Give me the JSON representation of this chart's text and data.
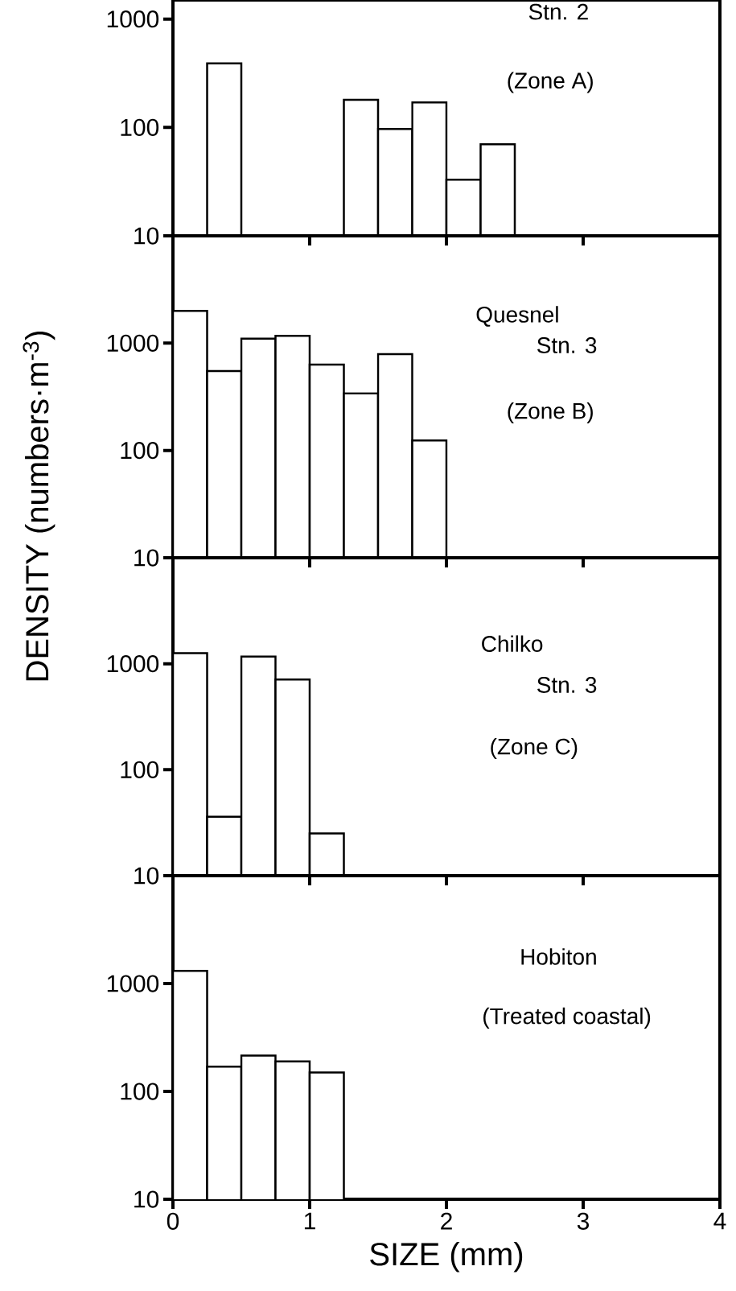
{
  "chart_data": [
    {
      "type": "histogram",
      "bins": [
        0,
        0.25,
        0.5,
        0.75,
        1,
        1.25,
        1.5,
        1.75,
        2,
        2.25,
        2.5
      ],
      "values": [
        null,
        390,
        null,
        null,
        null,
        180,
        97,
        170,
        33,
        70
      ],
      "color": "#ffffff",
      "log": true,
      "xlim": [
        0,
        4
      ],
      "xticks": [
        0,
        1,
        2,
        3,
        4
      ],
      "ylim": [
        10,
        1500
      ],
      "yticks": [
        10,
        100,
        1000
      ],
      "tick_labels": "y",
      "annotations": [
        "Stn. 2",
        "(Zone A)"
      ]
    },
    {
      "type": "histogram",
      "bins": [
        0,
        0.25,
        0.5,
        0.75,
        1,
        1.25,
        1.5,
        1.75,
        2
      ],
      "values": [
        2000,
        550,
        1100,
        1170,
        630,
        340,
        790,
        124
      ],
      "color": "#ffffff",
      "log": true,
      "xlim": [
        0,
        4
      ],
      "xticks": [
        0,
        1,
        2,
        3,
        4
      ],
      "ylim": [
        10,
        10000
      ],
      "yticks": [
        10,
        100,
        1000
      ],
      "tick_labels": "y",
      "ylabel": "DENSITY  (numbers·m$^{-3}$)",
      "annotations": [
        "Quesnel",
        "Stn. 3",
        "(Zone B)"
      ]
    },
    {
      "type": "histogram",
      "bins": [
        0,
        0.25,
        0.5,
        0.75,
        1,
        1.25
      ],
      "values": [
        1260,
        36,
        1170,
        710,
        25
      ],
      "color": "#ffffff",
      "log": true,
      "xlim": [
        0,
        4
      ],
      "xticks": [
        0,
        1,
        2,
        3,
        4
      ],
      "ylim": [
        10,
        10000
      ],
      "yticks": [
        10,
        100,
        1000
      ],
      "tick_labels": "y",
      "annotations": [
        "Chilko",
        "Stn. 3",
        "(Zone C)"
      ]
    },
    {
      "type": "histogram",
      "bins": [
        0,
        0.25,
        0.5,
        0.75,
        1,
        1.25
      ],
      "values": [
        1310,
        170,
        215,
        190,
        150
      ],
      "color": "#ffffff",
      "log": true,
      "xlim": [
        0,
        4
      ],
      "xticks": [
        0,
        1,
        2,
        3,
        4
      ],
      "ylim": [
        10,
        10000
      ],
      "yticks": [
        10,
        100,
        1000
      ],
      "xlabel": "SIZE  (mm)",
      "annotations": [
        "Hobiton",
        "(Treated coastal)"
      ]
    }
  ]
}
